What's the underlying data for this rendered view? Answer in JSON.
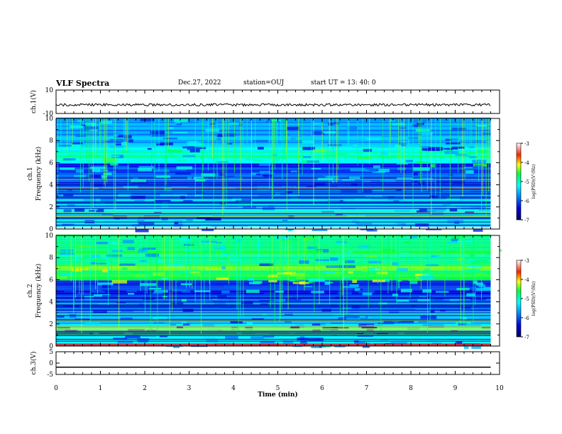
{
  "header": {
    "title": "VLF Spectra",
    "date": "Dec.27, 2022",
    "station": "station=OUJ",
    "start": "start  UT =   13: 40: 0"
  },
  "chart_data": [
    {
      "type": "line",
      "title": "VLF Spectra",
      "ylabel": "ch.1(V)",
      "ylim": [
        -10,
        10
      ],
      "yticks": [
        "10",
        "-10"
      ],
      "xlim": [
        0,
        10
      ],
      "series": [
        {
          "x": [
            0,
            9.8
          ],
          "y": [
            -2.6,
            -2.6
          ]
        }
      ]
    },
    {
      "type": "heatmap",
      "ylabel_line1": "ch.1",
      "ylabel_line2": "Frequency  (kHz)",
      "ylim": [
        0,
        10
      ],
      "yticks": [
        "0",
        "2",
        "4",
        "6",
        "8",
        "10"
      ],
      "xlim": [
        0,
        10
      ],
      "colorbar": {
        "label": "log(PSD)(V²/Hz)",
        "range": [
          -7,
          -3
        ],
        "ticks": [
          "-3",
          "-4",
          "-5",
          "-6",
          "-7"
        ]
      }
    },
    {
      "type": "heatmap",
      "ylabel_line1": "ch.2",
      "ylabel_line2": "Frequency  (kHz)",
      "ylim": [
        0,
        10
      ],
      "yticks": [
        "0",
        "2",
        "4",
        "6",
        "8",
        "10"
      ],
      "xlim": [
        0,
        10
      ],
      "colorbar": {
        "label": "log(PSD)(V²/Hz)",
        "range": [
          -7,
          -3
        ],
        "ticks": [
          "-3",
          "-4",
          "-5",
          "-6",
          "-7"
        ]
      }
    },
    {
      "type": "line",
      "ylabel": "ch.3(V)",
      "ylim": [
        -5,
        5
      ],
      "yticks": [
        "5",
        "0",
        "-5"
      ],
      "xlim": [
        0,
        10
      ],
      "xlabel": "Time  (min)",
      "xticks": [
        "0",
        "1",
        "2",
        "3",
        "4",
        "5",
        "6",
        "7",
        "8",
        "9",
        "10"
      ],
      "series": [
        {
          "x": [
            0,
            9.8
          ],
          "y": [
            -1.8,
            -1.8
          ]
        }
      ]
    }
  ]
}
